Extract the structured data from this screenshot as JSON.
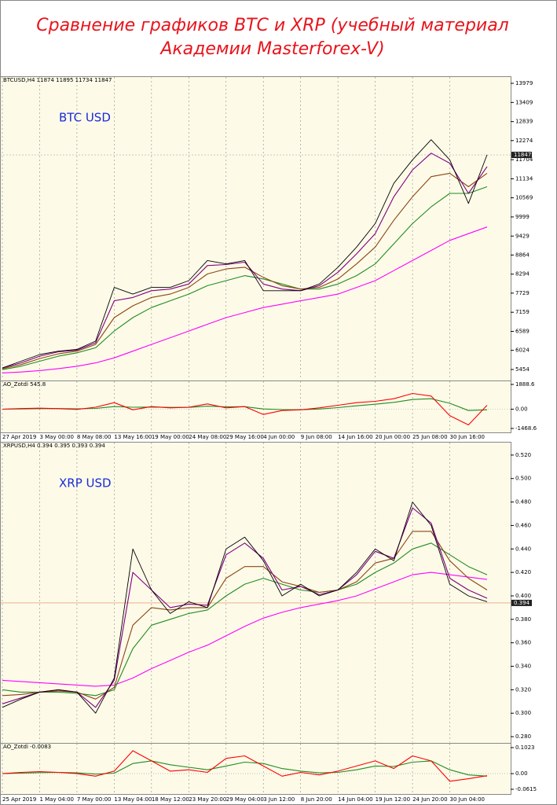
{
  "title": [
    "Сравнение графиков BTC и XRP (учебный материал",
    "Академии Masterforex-V)"
  ],
  "chart_data": [
    {
      "type": "line",
      "header": "BTCUSD,H4 11874 11895 11734 11847",
      "label": "BTC USD",
      "last_price": {
        "value": 11847,
        "label": "11847"
      },
      "categories": [
        "27 Apr 2019",
        null,
        "3 May 00:00",
        null,
        "8 May 08:00",
        null,
        "13 May 16:00",
        null,
        "19 May 00:00",
        null,
        "24 May 08:00",
        null,
        "29 May 16:00",
        null,
        "4 Jun 00:00",
        null,
        "9 Jun 08:00",
        null,
        "14 Jun 16:00",
        null,
        "20 Jun 00:00",
        null,
        "25 Jun 08:00",
        null,
        "30 Jun 16:00",
        null,
        null
      ],
      "ylim": [
        5126,
        14190
      ],
      "yticks": [
        13979,
        13409,
        12839,
        12274,
        11704,
        11134,
        10569,
        9999,
        9429,
        8864,
        8294,
        7729,
        7159,
        6589,
        6024,
        5454
      ],
      "series": [
        {
          "color": "#ff00ff",
          "values": [
            5350,
            5380,
            5420,
            5480,
            5550,
            5650,
            5800,
            6000,
            6200,
            6400,
            6600,
            6800,
            7000,
            7150,
            7300,
            7400,
            7500,
            7600,
            7700,
            7900,
            8100,
            8400,
            8700,
            9000,
            9300,
            9500,
            9700
          ]
        },
        {
          "color": "#228b22",
          "values": [
            5450,
            5550,
            5700,
            5850,
            5950,
            6100,
            6600,
            7000,
            7300,
            7500,
            7700,
            7950,
            8100,
            8250,
            8150,
            8000,
            7850,
            7850,
            8000,
            8250,
            8600,
            9200,
            9800,
            10300,
            10700,
            10700,
            10900
          ]
        },
        {
          "color": "#8b4513",
          "values": [
            5480,
            5600,
            5780,
            5920,
            6000,
            6200,
            7000,
            7350,
            7600,
            7700,
            7900,
            8300,
            8450,
            8500,
            8200,
            7950,
            7850,
            7900,
            8150,
            8600,
            9100,
            9900,
            10600,
            11200,
            11300,
            10900,
            11300
          ]
        },
        {
          "color": "#800080",
          "values": [
            5500,
            5650,
            5850,
            5980,
            6030,
            6250,
            7500,
            7600,
            7800,
            7850,
            8000,
            8550,
            8580,
            8650,
            8000,
            7850,
            7800,
            7950,
            8350,
            8900,
            9500,
            10600,
            11400,
            11900,
            11600,
            10700,
            11500
          ]
        },
        {
          "color": "#000000",
          "values": [
            5500,
            5700,
            5900,
            6000,
            6050,
            6300,
            7900,
            7700,
            7900,
            7900,
            8100,
            8700,
            8600,
            8700,
            7800,
            7800,
            7800,
            8000,
            8500,
            9100,
            9800,
            11000,
            11700,
            12300,
            11700,
            10400,
            11850
          ]
        }
      ]
    },
    {
      "type": "line",
      "header": "AO_Zotdi 545.8",
      "ylim": [
        -1468.6,
        1888.6
      ],
      "yticks": [
        1888.6,
        {
          "value": 0,
          "label": "0.00"
        },
        -1468.6
      ],
      "series": [
        {
          "color": "#228b22",
          "values": [
            0,
            20,
            40,
            50,
            30,
            60,
            200,
            150,
            160,
            140,
            140,
            230,
            180,
            190,
            20,
            -30,
            -40,
            10,
            120,
            260,
            380,
            520,
            740,
            800,
            450,
            -100,
            -50
          ]
        },
        {
          "color": "#ff0000",
          "values": [
            0,
            50,
            80,
            40,
            -20,
            150,
            500,
            -50,
            200,
            100,
            150,
            400,
            100,
            200,
            -400,
            -100,
            -50,
            100,
            300,
            500,
            600,
            800,
            1200,
            1000,
            -500,
            -1200,
            300
          ]
        }
      ]
    },
    {
      "type": "line",
      "header": "XRPUSD,H4 0.394 0.395 0.393 0.394",
      "label": "XRP USD",
      "last_price": {
        "value": 0.394,
        "label": "0.394"
      },
      "categories": [
        "25 Apr 2019",
        null,
        "1 May 04:00",
        null,
        "7 May 00:00",
        null,
        "13 May 04:00",
        null,
        "18 May 12:00",
        null,
        "23 May 20:00",
        null,
        "29 May 04:00",
        null,
        "3 Jun 12:00",
        null,
        "8 Jun 20:00",
        null,
        "14 Jun 04:00",
        null,
        "19 Jun 12:00",
        null,
        "24 Jun 20:00",
        null,
        "30 Jun 04:00",
        null,
        null
      ],
      "ylim": [
        0.2747,
        0.5313
      ],
      "yticks": [
        {
          "value": 0.52,
          "label": "0.520"
        },
        {
          "value": 0.5,
          "label": "0.500"
        },
        {
          "value": 0.48,
          "label": "0.480"
        },
        {
          "value": 0.46,
          "label": "0.460"
        },
        {
          "value": 0.44,
          "label": "0.440"
        },
        {
          "value": 0.42,
          "label": "0.420"
        },
        {
          "value": 0.4,
          "label": "0.400"
        },
        {
          "value": 0.38,
          "label": "0.380"
        },
        {
          "value": 0.36,
          "label": "0.360"
        },
        {
          "value": 0.34,
          "label": "0.340"
        },
        {
          "value": 0.32,
          "label": "0.320"
        },
        {
          "value": 0.3,
          "label": "0.300"
        },
        {
          "value": 0.28,
          "label": "0.280"
        }
      ],
      "series": [
        {
          "color": "#ff00ff",
          "values": [
            0.328,
            0.327,
            0.326,
            0.325,
            0.324,
            0.323,
            0.324,
            0.33,
            0.338,
            0.345,
            0.352,
            0.358,
            0.366,
            0.374,
            0.381,
            0.386,
            0.39,
            0.393,
            0.396,
            0.4,
            0.406,
            0.412,
            0.418,
            0.42,
            0.418,
            0.416,
            0.414
          ]
        },
        {
          "color": "#228b22",
          "values": [
            0.32,
            0.318,
            0.318,
            0.318,
            0.317,
            0.315,
            0.32,
            0.355,
            0.375,
            0.38,
            0.385,
            0.388,
            0.4,
            0.41,
            0.415,
            0.41,
            0.405,
            0.403,
            0.405,
            0.41,
            0.42,
            0.428,
            0.44,
            0.445,
            0.435,
            0.425,
            0.418
          ]
        },
        {
          "color": "#8b4513",
          "values": [
            0.315,
            0.316,
            0.318,
            0.319,
            0.318,
            0.312,
            0.322,
            0.375,
            0.39,
            0.388,
            0.39,
            0.39,
            0.415,
            0.425,
            0.425,
            0.412,
            0.408,
            0.403,
            0.405,
            0.412,
            0.428,
            0.432,
            0.455,
            0.455,
            0.43,
            0.415,
            0.405
          ]
        },
        {
          "color": "#800080",
          "values": [
            0.308,
            0.313,
            0.318,
            0.32,
            0.318,
            0.305,
            0.328,
            0.42,
            0.405,
            0.39,
            0.393,
            0.392,
            0.435,
            0.445,
            0.432,
            0.405,
            0.408,
            0.401,
            0.405,
            0.418,
            0.438,
            0.432,
            0.475,
            0.462,
            0.415,
            0.405,
            0.398
          ]
        },
        {
          "color": "#000000",
          "values": [
            0.305,
            0.312,
            0.318,
            0.32,
            0.318,
            0.3,
            0.33,
            0.44,
            0.405,
            0.385,
            0.395,
            0.39,
            0.44,
            0.45,
            0.43,
            0.4,
            0.41,
            0.4,
            0.405,
            0.42,
            0.44,
            0.43,
            0.48,
            0.46,
            0.41,
            0.4,
            0.395
          ]
        }
      ]
    },
    {
      "type": "line",
      "header": "AO_Zotdi -0.0083",
      "ylim": [
        -0.0615,
        0.1023
      ],
      "yticks": [
        0.1023,
        {
          "value": 0,
          "label": "0.00"
        },
        -0.0615
      ],
      "series": [
        {
          "color": "#228b22",
          "values": [
            0,
            0.002,
            0.004,
            0.005,
            0.003,
            -0.002,
            0.002,
            0.04,
            0.05,
            0.035,
            0.025,
            0.015,
            0.03,
            0.045,
            0.04,
            0.02,
            0.01,
            0.003,
            0.005,
            0.015,
            0.03,
            0.028,
            0.045,
            0.05,
            0.015,
            -0.005,
            -0.01
          ]
        },
        {
          "color": "#ff0000",
          "values": [
            0,
            0.005,
            0.008,
            0.005,
            0,
            -0.01,
            0.01,
            0.09,
            0.05,
            0.01,
            0.015,
            0.005,
            0.06,
            0.07,
            0.03,
            -0.01,
            0.005,
            -0.005,
            0.01,
            0.03,
            0.05,
            0.02,
            0.07,
            0.05,
            -0.03,
            -0.02,
            -0.008
          ]
        }
      ]
    }
  ]
}
